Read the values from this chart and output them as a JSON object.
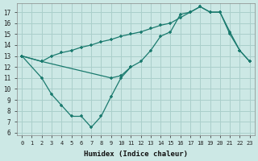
{
  "xlabel": "Humidex (Indice chaleur)",
  "bg_color": "#cce8e5",
  "grid_color": "#aacfcb",
  "line_color": "#1a7a6e",
  "xlim": [
    -0.5,
    23.5
  ],
  "ylim": [
    5.8,
    17.8
  ],
  "yticks": [
    6,
    7,
    8,
    9,
    10,
    11,
    12,
    13,
    14,
    15,
    16,
    17
  ],
  "xticks": [
    0,
    1,
    2,
    3,
    4,
    5,
    6,
    7,
    8,
    9,
    10,
    11,
    12,
    13,
    14,
    15,
    16,
    17,
    18,
    19,
    20,
    21,
    22,
    23
  ],
  "line_big_x": [
    0,
    2,
    3,
    4,
    5,
    6,
    7,
    8,
    9,
    10,
    11,
    12,
    13,
    14,
    15,
    16,
    17,
    18,
    19,
    20,
    21,
    22,
    23
  ],
  "line_big_y": [
    13,
    12.5,
    13.0,
    13.3,
    13.5,
    13.8,
    14.0,
    14.3,
    14.5,
    14.8,
    15.0,
    15.2,
    15.5,
    15.8,
    16.0,
    16.5,
    17.0,
    17.5,
    17.0,
    17.0,
    15.2,
    13.5,
    12.5
  ],
  "line_dip_x": [
    0,
    2,
    3,
    4,
    5,
    6,
    7,
    8,
    9,
    10,
    11
  ],
  "line_dip_y": [
    13,
    11.0,
    9.5,
    8.5,
    7.5,
    7.5,
    6.5,
    7.5,
    9.3,
    11.0,
    12.0
  ],
  "line_flat_x": [
    0,
    2,
    9,
    10,
    11,
    12,
    13,
    14,
    15,
    16,
    17,
    18,
    19,
    20,
    21,
    22,
    23
  ],
  "line_flat_y": [
    13,
    12.5,
    11.0,
    11.2,
    12.0,
    12.5,
    13.5,
    14.8,
    15.2,
    16.8,
    17.0,
    17.5,
    17.0,
    17.0,
    15.0,
    13.5,
    12.5
  ]
}
